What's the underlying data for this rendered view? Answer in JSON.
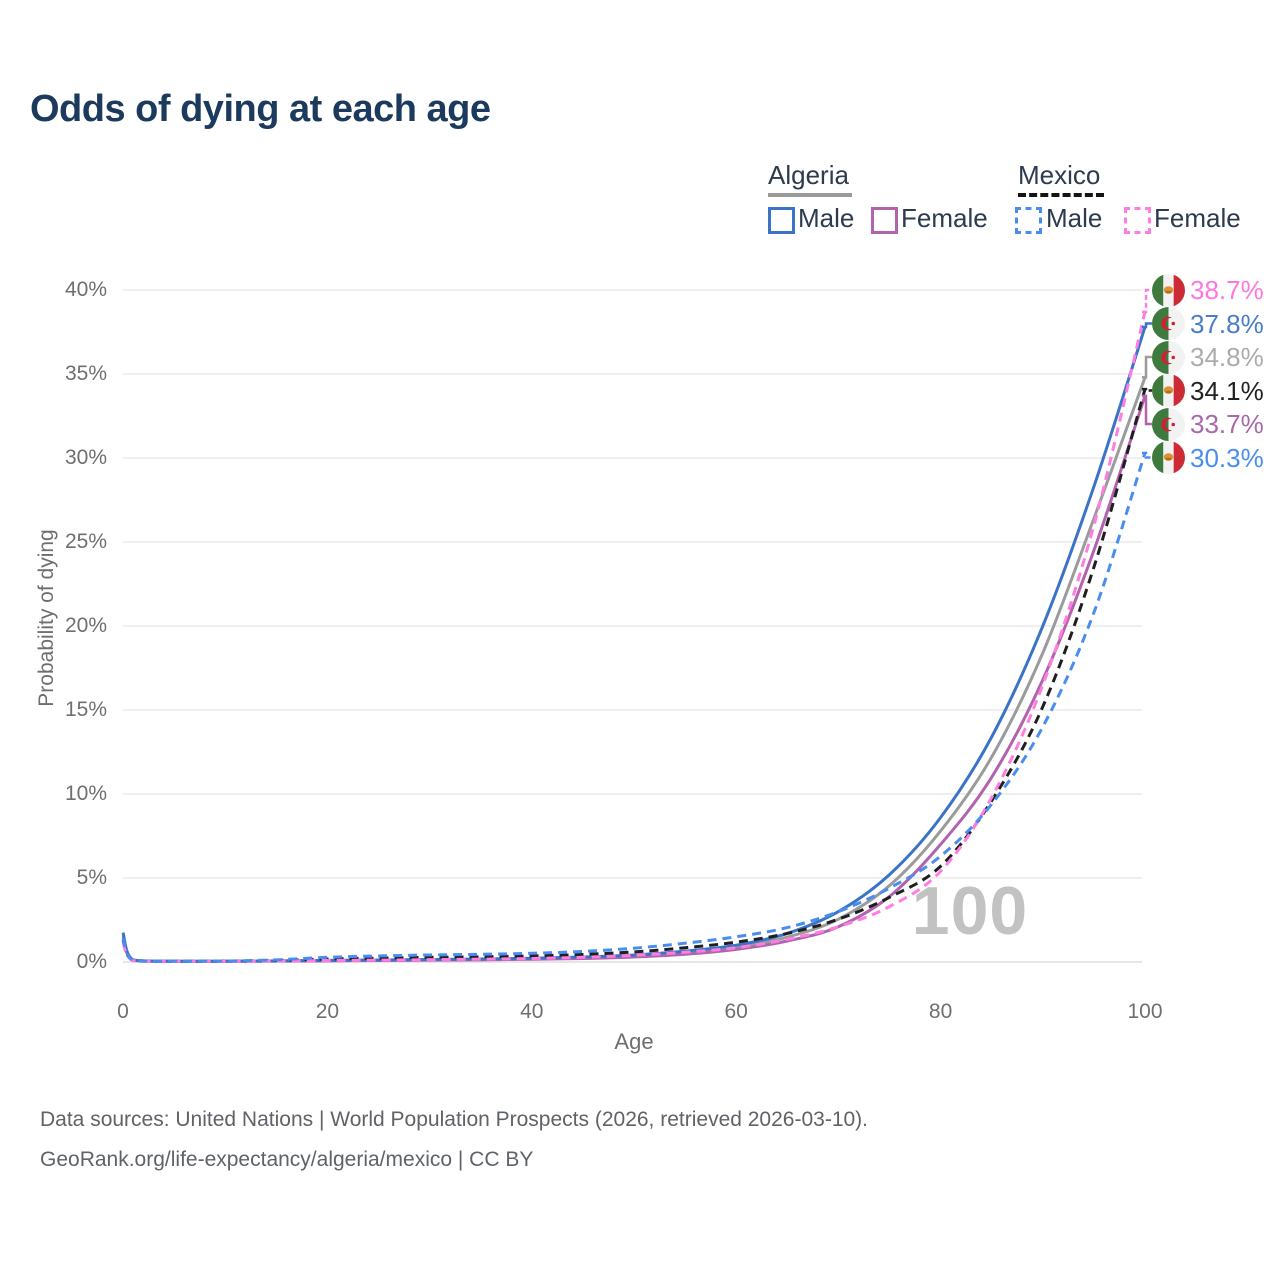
{
  "header": {
    "title": "Odds of dying at each age"
  },
  "legend": {
    "groups": [
      {
        "country": "Algeria",
        "underline_style": "solid",
        "underline_color": "#9a9a9a",
        "items": [
          {
            "label": "Male",
            "swatch_color": "#3b74c6",
            "swatch_style": "solid"
          },
          {
            "label": "Female",
            "swatch_color": "#b163ae",
            "swatch_style": "solid"
          }
        ]
      },
      {
        "country": "Mexico",
        "underline_style": "dashed",
        "underline_color": "#151515",
        "items": [
          {
            "label": "Male",
            "swatch_color": "#4a8df0",
            "swatch_style": "dashed"
          },
          {
            "label": "Female",
            "swatch_color": "#ff7de1",
            "swatch_style": "dashed"
          }
        ]
      }
    ]
  },
  "chart_data": {
    "type": "line",
    "title": "Odds of dying at each age",
    "xlabel": "Age",
    "ylabel": "Probability of dying",
    "xlim": [
      0,
      100
    ],
    "ylim": [
      0,
      40
    ],
    "x_ticks": [
      0,
      20,
      40,
      60,
      80,
      100
    ],
    "y_ticks": [
      0,
      5,
      10,
      15,
      20,
      25,
      30,
      35,
      40
    ],
    "y_tick_suffix": "%",
    "grid": "horizontal",
    "legend_position": "top-right",
    "age_indicator": "100",
    "ages": [
      0,
      1,
      5,
      10,
      15,
      20,
      25,
      30,
      35,
      40,
      45,
      50,
      55,
      60,
      65,
      70,
      75,
      80,
      85,
      90,
      95,
      100
    ],
    "series": [
      {
        "id": "algeria-both",
        "name": "Algeria Both sexes",
        "country": "Algeria",
        "sex": "Both",
        "color": "#9b9b9b",
        "line_style": "solid",
        "end_value": 34.8,
        "values": [
          1.6,
          0.11,
          0.045,
          0.045,
          0.06,
          0.085,
          0.105,
          0.13,
          0.155,
          0.19,
          0.255,
          0.36,
          0.55,
          0.88,
          1.48,
          2.55,
          4.55,
          7.8,
          12.2,
          18.4,
          26.4,
          34.8
        ]
      },
      {
        "id": "algeria-female",
        "name": "Algeria Female",
        "country": "Algeria",
        "sex": "Female",
        "color": "#b163ae",
        "line_style": "solid",
        "end_value": 33.7,
        "values": [
          1.45,
          0.1,
          0.04,
          0.04,
          0.05,
          0.07,
          0.09,
          0.11,
          0.13,
          0.16,
          0.21,
          0.3,
          0.46,
          0.75,
          1.25,
          2.1,
          3.9,
          7.0,
          11.0,
          16.8,
          24.5,
          33.7
        ]
      },
      {
        "id": "algeria-male",
        "name": "Algeria Male",
        "country": "Algeria",
        "sex": "Male",
        "color": "#3b74c6",
        "line_style": "solid",
        "end_value": 37.8,
        "values": [
          1.75,
          0.12,
          0.05,
          0.05,
          0.07,
          0.1,
          0.12,
          0.15,
          0.18,
          0.22,
          0.3,
          0.42,
          0.65,
          1.0,
          1.7,
          3.0,
          5.2,
          8.6,
          13.4,
          20.0,
          28.3,
          37.8
        ]
      },
      {
        "id": "mexico-both",
        "name": "Mexico Both sexes",
        "country": "Mexico",
        "sex": "Both",
        "color": "#1f1f1f",
        "line_style": "dashed",
        "end_value": 34.1,
        "values": [
          1.3,
          0.09,
          0.045,
          0.05,
          0.09,
          0.18,
          0.23,
          0.28,
          0.31,
          0.36,
          0.45,
          0.6,
          0.85,
          1.18,
          1.7,
          2.55,
          3.85,
          5.7,
          9.6,
          15.2,
          23.5,
          34.1
        ]
      },
      {
        "id": "mexico-female",
        "name": "Mexico Female",
        "country": "Mexico",
        "sex": "Female",
        "color": "#ff7de1",
        "line_style": "dashed",
        "end_value": 38.7,
        "values": [
          1.15,
          0.08,
          0.04,
          0.04,
          0.06,
          0.09,
          0.11,
          0.14,
          0.17,
          0.21,
          0.28,
          0.4,
          0.58,
          0.85,
          1.35,
          2.1,
          3.3,
          5.4,
          9.8,
          16.5,
          26.0,
          38.7
        ]
      },
      {
        "id": "mexico-male",
        "name": "Mexico Male",
        "country": "Mexico",
        "sex": "Male",
        "color": "#4a8df0",
        "line_style": "dashed",
        "end_value": 30.3,
        "values": [
          1.4,
          0.1,
          0.05,
          0.06,
          0.13,
          0.28,
          0.36,
          0.42,
          0.46,
          0.52,
          0.63,
          0.82,
          1.12,
          1.5,
          2.05,
          3.0,
          4.4,
          6.3,
          9.4,
          14.0,
          20.8,
          30.3
        ]
      }
    ],
    "end_labels": [
      {
        "value": "38.7%",
        "series": "mexico-female",
        "flag": "mexico",
        "color": "#ff77dd"
      },
      {
        "value": "37.8%",
        "series": "algeria-male",
        "flag": "algeria",
        "color": "#4a7dc9"
      },
      {
        "value": "34.8%",
        "series": "algeria-both",
        "flag": "algeria",
        "color": "#ababab"
      },
      {
        "value": "34.1%",
        "series": "mexico-both",
        "flag": "mexico",
        "color": "#222222"
      },
      {
        "value": "33.7%",
        "series": "algeria-female",
        "flag": "algeria",
        "color": "#a869ab"
      },
      {
        "value": "30.3%",
        "series": "mexico-male",
        "flag": "mexico",
        "color": "#4a8df0"
      }
    ]
  },
  "footer": {
    "line1": "Data sources: United Nations | World Population Prospects (2026, retrieved 2026-03-10).",
    "line2": "GeoRank.org/life-expectancy/algeria/mexico | CC BY"
  }
}
